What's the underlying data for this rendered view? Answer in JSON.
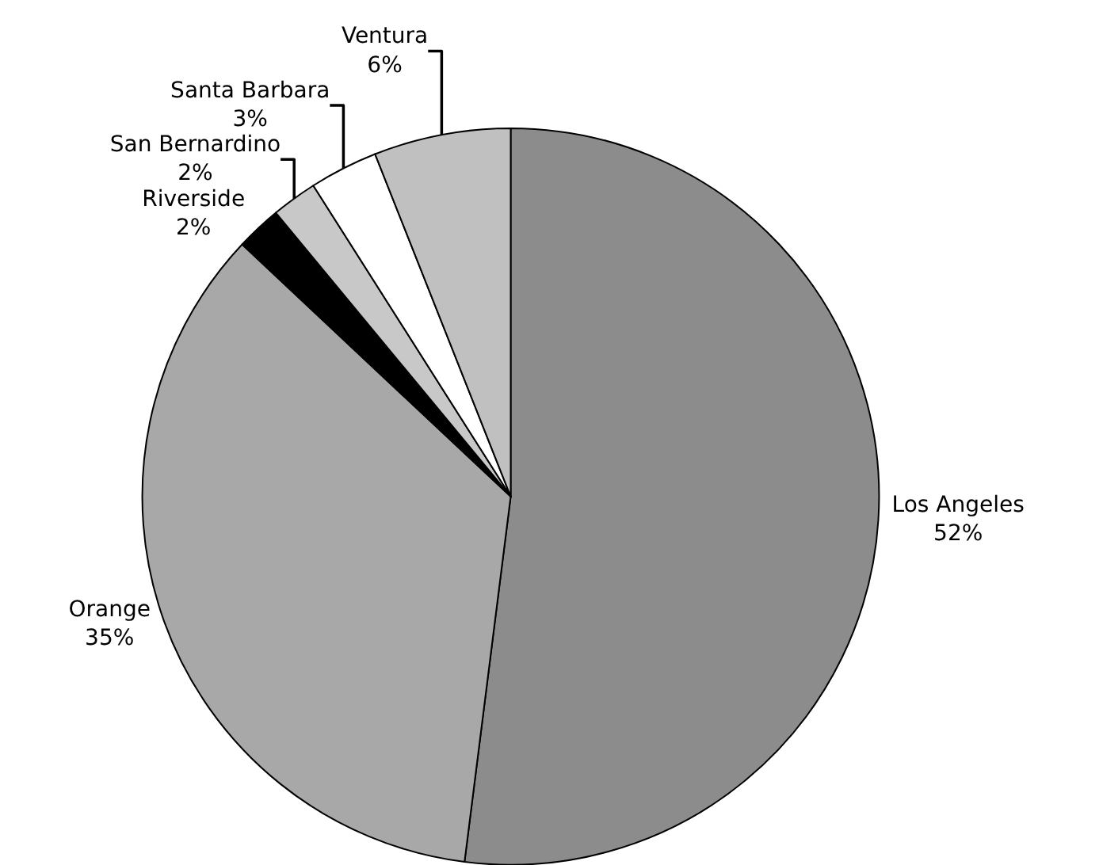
{
  "chart_data": {
    "type": "pie",
    "categories": [
      "Los Angeles",
      "Orange",
      "Riverside",
      "San Bernardino",
      "Santa Barbara",
      "Ventura"
    ],
    "values": [
      52,
      35,
      2,
      2,
      3,
      6
    ],
    "value_labels": [
      "52%",
      "35%",
      "2%",
      "2%",
      "3%",
      "6%"
    ],
    "colors": [
      "#8c8c8c",
      "#a8a8a8",
      "#000000",
      "#c8c8c8",
      "#ffffff",
      "#c0c0c0"
    ]
  }
}
